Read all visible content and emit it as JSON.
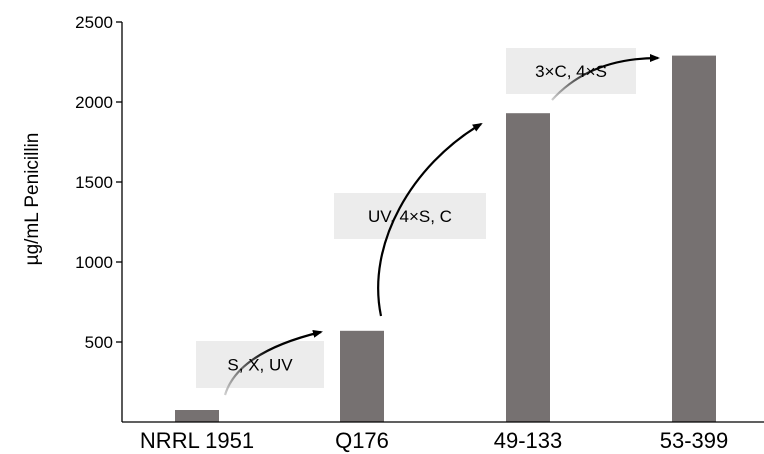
{
  "chart_data": {
    "type": "bar",
    "title": "",
    "xlabel": "",
    "ylabel": "µg/mL Penicillin",
    "categories": [
      "NRRL 1951",
      "Q176",
      "49-133",
      "53-399"
    ],
    "values": [
      75,
      570,
      1930,
      2290
    ],
    "ylim": [
      0,
      2500
    ],
    "yticks": [
      500,
      1000,
      1500,
      2000,
      2500
    ],
    "grid": false,
    "bar_color": "#767171",
    "annotations": [
      {
        "text": "S, X, UV",
        "from": "NRRL 1951",
        "to": "Q176"
      },
      {
        "text": "UV, 4×S, C",
        "from": "Q176",
        "to": "49-133"
      },
      {
        "text": "3×C, 4×S",
        "from": "49-133",
        "to": "53-399"
      }
    ]
  }
}
